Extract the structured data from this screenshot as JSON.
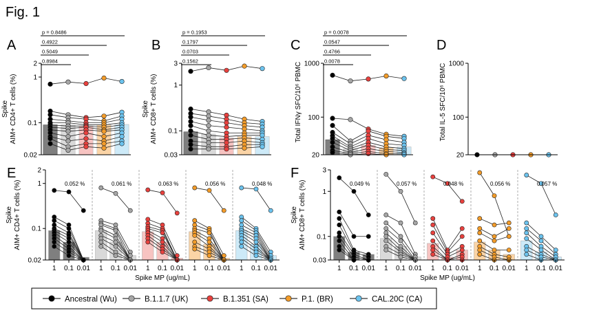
{
  "figure": {
    "title": "Fig. 1"
  },
  "colors": {
    "Ancestral (Wu)": "#000000",
    "B.1.1.7 (UK)": "#a6a6a6",
    "B.1.351 (SA)": "#e8413e",
    "P.1. (BR)": "#f39c2a",
    "CAL.20C (CA)": "#6cc3ee"
  },
  "bar_fill": {
    "Ancestral (Wu)": "#7f7f7f",
    "B.1.1.7 (UK)": "#d9d9d9",
    "B.1.351 (SA)": "#f7c3c1",
    "P.1. (BR)": "#fbd4a6",
    "CAL.20C (CA)": "#cdeaf8"
  },
  "legend": {
    "items": [
      {
        "label": "Ancestral (Wu)",
        "color": "#000000"
      },
      {
        "label": "B.1.1.7 (UK)",
        "color": "#a6a6a6"
      },
      {
        "label": "B.1.351 (SA)",
        "color": "#e8413e"
      },
      {
        "label": "P.1. (BR)",
        "color": "#f39c2a"
      },
      {
        "label": "CAL.20C (CA)",
        "color": "#6cc3ee"
      }
    ]
  },
  "chart_data": [
    {
      "panel": "A",
      "type": "bar",
      "scale": "log",
      "ylabel_line1": "Spike",
      "ylabel_line2": "AIM+ CD4+ T cells (%)",
      "ylim": [
        0.02,
        2
      ],
      "yticks": [
        {
          "v": 2,
          "label": "2"
        },
        {
          "v": 1,
          "label": "1"
        },
        {
          "v": 0.1,
          "label": "0.1"
        },
        {
          "v": 0.02,
          "label": "0.02"
        }
      ],
      "categories": [
        "Ancestral (Wu)",
        "B.1.1.7 (UK)",
        "B.1.351 (SA)",
        "P.1. (BR)",
        "CAL.20C (CA)"
      ],
      "bars": [
        0.09,
        0.09,
        0.085,
        0.09,
        0.092
      ],
      "subjects": [
        [
          0.7,
          0.78,
          0.72,
          0.95,
          0.8
        ],
        [
          0.18,
          0.15,
          0.13,
          0.14,
          0.17
        ],
        [
          0.15,
          0.13,
          0.12,
          0.11,
          0.14
        ],
        [
          0.12,
          0.11,
          0.1,
          0.1,
          0.12
        ],
        [
          0.1,
          0.1,
          0.09,
          0.09,
          0.1
        ],
        [
          0.09,
          0.085,
          0.085,
          0.08,
          0.09
        ],
        [
          0.08,
          0.075,
          0.08,
          0.07,
          0.08
        ],
        [
          0.07,
          0.065,
          0.07,
          0.065,
          0.07
        ],
        [
          0.06,
          0.05,
          0.06,
          0.05,
          0.06
        ],
        [
          0.05,
          0.04,
          0.045,
          0.04,
          0.05
        ],
        [
          0.045,
          0.03,
          0.035,
          0.035,
          0.04
        ],
        [
          0.035,
          0.025,
          0.03,
          0.028,
          0.035
        ]
      ],
      "pvalues": [
        {
          "label": "p = 0.8486",
          "to": 4
        },
        {
          "label": "0.4922",
          "to": 3
        },
        {
          "label": "0.5049",
          "to": 2
        },
        {
          "label": "0.8984",
          "to": 1
        }
      ]
    },
    {
      "panel": "B",
      "type": "bar",
      "scale": "log",
      "ylabel_line1": "Spike",
      "ylabel_line2": "AIM+ CD8+ T cells (%)",
      "ylim": [
        0.03,
        3
      ],
      "yticks": [
        {
          "v": 3,
          "label": "3"
        },
        {
          "v": 1,
          "label": "1"
        },
        {
          "v": 0.1,
          "label": "0.1"
        },
        {
          "v": 0.03,
          "label": "0.03"
        }
      ],
      "categories": [
        "Ancestral (Wu)",
        "B.1.1.7 (UK)",
        "B.1.351 (SA)",
        "P.1. (BR)",
        "CAL.20C (CA)"
      ],
      "bars": [
        0.095,
        0.085,
        0.07,
        0.075,
        0.075
      ],
      "subjects": [
        [
          2.0,
          2.4,
          2.1,
          2.6,
          2.3
        ],
        [
          0.3,
          0.26,
          0.22,
          0.18,
          0.16
        ],
        [
          0.24,
          0.21,
          0.18,
          0.15,
          0.14
        ],
        [
          0.2,
          0.17,
          0.15,
          0.13,
          0.12
        ],
        [
          0.16,
          0.13,
          0.12,
          0.11,
          0.1
        ],
        [
          0.13,
          0.1,
          0.09,
          0.09,
          0.09
        ],
        [
          0.1,
          0.08,
          0.075,
          0.08,
          0.08
        ],
        [
          0.08,
          0.065,
          0.065,
          0.07,
          0.065
        ],
        [
          0.06,
          0.055,
          0.055,
          0.06,
          0.055
        ],
        [
          0.05,
          0.045,
          0.045,
          0.05,
          0.05
        ],
        [
          0.04,
          0.04,
          0.04,
          0.042,
          0.045
        ]
      ],
      "pvalues": [
        {
          "label": "p = 0.1953",
          "to": 4
        },
        {
          "label": "0.1797",
          "to": 3
        },
        {
          "label": "0.0703",
          "to": 2
        },
        {
          "label": "0.1562",
          "to": 1
        }
      ]
    },
    {
      "panel": "C",
      "type": "bar",
      "scale": "log",
      "ylabel_line1": "Total IFNγ SFC/10⁶ PBMC",
      "ylabel_line2": "",
      "ylim": [
        20,
        1000
      ],
      "yticks": [
        {
          "v": 1000,
          "label": "1000"
        },
        {
          "v": 100,
          "label": "100"
        },
        {
          "v": 20,
          "label": "20"
        }
      ],
      "categories": [
        "Ancestral (Wu)",
        "B.1.1.7 (UK)",
        "B.1.351 (SA)",
        "P.1. (BR)",
        "CAL.20C (CA)"
      ],
      "bars": [
        38,
        26,
        30,
        27,
        28
      ],
      "subjects": [
        [
          600,
          470,
          510,
          580,
          520
        ],
        [
          95,
          90,
          60,
          48,
          44
        ],
        [
          70,
          36,
          55,
          44,
          40
        ],
        [
          52,
          32,
          46,
          38,
          34
        ],
        [
          45,
          28,
          40,
          32,
          30
        ],
        [
          40,
          26,
          34,
          28,
          26
        ],
        [
          34,
          24,
          30,
          25,
          24
        ],
        [
          28,
          22,
          26,
          23,
          22
        ],
        [
          24,
          21,
          23,
          21,
          21
        ],
        [
          22,
          20,
          21,
          20,
          20
        ]
      ],
      "pvalues": [
        {
          "label": "p = 0.0078",
          "to": 4
        },
        {
          "label": "0.0547",
          "to": 3
        },
        {
          "label": "0.4766",
          "to": 2
        },
        {
          "label": "0.0078",
          "to": 1
        }
      ]
    },
    {
      "panel": "D",
      "type": "bar",
      "scale": "log",
      "ylabel_line1": "Total IL-5 SFC/10⁶ PBMC",
      "ylabel_line2": "",
      "ylim": [
        20,
        1000
      ],
      "yticks": [
        {
          "v": 1000,
          "label": "1000"
        },
        {
          "v": 100,
          "label": "100"
        },
        {
          "v": 20,
          "label": "20"
        }
      ],
      "categories": [
        "Ancestral (Wu)",
        "B.1.1.7 (UK)",
        "B.1.351 (SA)",
        "P.1. (BR)",
        "CAL.20C (CA)"
      ],
      "bars": [
        20,
        20,
        20,
        20,
        20
      ],
      "subjects": [
        [
          20,
          20,
          20,
          20,
          20
        ]
      ],
      "pvalues": []
    },
    {
      "panel": "E",
      "type": "bar",
      "scale": "log",
      "ylabel_line1": "Spike",
      "ylabel_line2": "AIM+ CD4+ T cells (%)",
      "xlabel": "Spike MP (ug/mL)",
      "ylim": [
        0.02,
        2
      ],
      "yticks": [
        {
          "v": 2,
          "label": "2"
        },
        {
          "v": 1,
          "label": "1"
        },
        {
          "v": 0.1,
          "label": "0.1"
        },
        {
          "v": 0.02,
          "label": "0.02"
        }
      ],
      "doses": [
        "1",
        "0.1",
        "0.01"
      ],
      "groups": [
        {
          "variant": "Ancestral (Wu)",
          "annot": "0.052 %",
          "bars": [
            0.09,
            0.05,
            0.023
          ],
          "subjects": [
            [
              0.7,
              0.65,
              0.25
            ],
            [
              0.18,
              0.12,
              0.02
            ],
            [
              0.15,
              0.1,
              0.02
            ],
            [
              0.12,
              0.08,
              0.02
            ],
            [
              0.1,
              0.07,
              0.02
            ],
            [
              0.09,
              0.06,
              0.02
            ],
            [
              0.08,
              0.05,
              0.02
            ],
            [
              0.07,
              0.04,
              0.02
            ],
            [
              0.06,
              0.035,
              0.02
            ],
            [
              0.05,
              0.03,
              0.02
            ],
            [
              0.04,
              0.025,
              0.02
            ]
          ]
        },
        {
          "variant": "B.1.1.7 (UK)",
          "annot": "0.061 %",
          "bars": [
            0.09,
            0.05,
            0.025
          ],
          "subjects": [
            [
              0.8,
              0.6,
              0.25
            ],
            [
              0.15,
              0.12,
              0.03
            ],
            [
              0.13,
              0.1,
              0.025
            ],
            [
              0.12,
              0.09,
              0.02
            ],
            [
              0.1,
              0.07,
              0.02
            ],
            [
              0.09,
              0.06,
              0.02
            ],
            [
              0.07,
              0.05,
              0.02
            ],
            [
              0.06,
              0.04,
              0.02
            ],
            [
              0.05,
              0.03,
              0.02
            ],
            [
              0.04,
              0.025,
              0.02
            ]
          ]
        },
        {
          "variant": "B.1.351 (SA)",
          "annot": "0.063 %",
          "bars": [
            0.085,
            0.05,
            0.022
          ],
          "subjects": [
            [
              0.72,
              0.62,
              0.22
            ],
            [
              0.16,
              0.12,
              0.025
            ],
            [
              0.13,
              0.1,
              0.02
            ],
            [
              0.11,
              0.09,
              0.02
            ],
            [
              0.1,
              0.08,
              0.02
            ],
            [
              0.09,
              0.06,
              0.02
            ],
            [
              0.08,
              0.05,
              0.02
            ],
            [
              0.07,
              0.04,
              0.02
            ],
            [
              0.06,
              0.035,
              0.02
            ],
            [
              0.05,
              0.03,
              0.02
            ]
          ]
        },
        {
          "variant": "P.1. (BR)",
          "annot": "0.056 %",
          "bars": [
            0.085,
            0.045,
            0.022
          ],
          "subjects": [
            [
              0.8,
              0.7,
              0.25
            ],
            [
              0.15,
              0.1,
              0.025
            ],
            [
              0.12,
              0.09,
              0.02
            ],
            [
              0.1,
              0.08,
              0.02
            ],
            [
              0.09,
              0.06,
              0.02
            ],
            [
              0.08,
              0.05,
              0.02
            ],
            [
              0.07,
              0.04,
              0.02
            ],
            [
              0.05,
              0.035,
              0.02
            ],
            [
              0.04,
              0.03,
              0.02
            ],
            [
              0.035,
              0.025,
              0.02
            ]
          ]
        },
        {
          "variant": "CAL.20C (CA)",
          "annot": "0.048 %",
          "bars": [
            0.09,
            0.045,
            0.025
          ],
          "subjects": [
            [
              0.8,
              0.75,
              0.25
            ],
            [
              0.18,
              0.1,
              0.03
            ],
            [
              0.15,
              0.09,
              0.025
            ],
            [
              0.12,
              0.08,
              0.022
            ],
            [
              0.1,
              0.07,
              0.02
            ],
            [
              0.09,
              0.06,
              0.02
            ],
            [
              0.08,
              0.05,
              0.02
            ],
            [
              0.07,
              0.04,
              0.02
            ],
            [
              0.06,
              0.035,
              0.02
            ],
            [
              0.05,
              0.03,
              0.02
            ],
            [
              0.04,
              0.025,
              0.02
            ]
          ]
        }
      ]
    },
    {
      "panel": "F",
      "type": "bar",
      "scale": "log",
      "ylabel_line1": "Spike",
      "ylabel_line2": "AIM+ CD8+ T cells (%)",
      "xlabel": "Spike MP (ug/mL)",
      "ylim": [
        0.03,
        3
      ],
      "yticks": [
        {
          "v": 3,
          "label": "3"
        },
        {
          "v": 1,
          "label": "1"
        },
        {
          "v": 0.1,
          "label": "0.1"
        },
        {
          "v": 0.03,
          "label": "0.03"
        }
      ],
      "doses": [
        "1",
        "0.1",
        "0.01"
      ],
      "groups": [
        {
          "variant": "Ancestral (Wu)",
          "annot": "0.049 %",
          "bars": [
            0.1,
            0.045,
            0.04
          ],
          "subjects": [
            [
              2.0,
              1.0,
              0.3
            ],
            [
              0.35,
              0.1,
              0.1
            ],
            [
              0.25,
              0.05,
              0.04
            ],
            [
              0.18,
              0.045,
              0.035
            ],
            [
              0.12,
              0.04,
              0.03
            ],
            [
              0.1,
              0.035,
              0.03
            ],
            [
              0.08,
              0.03,
              0.03
            ],
            [
              0.06,
              0.03,
              0.03
            ],
            [
              0.05,
              0.03,
              0.03
            ]
          ]
        },
        {
          "variant": "B.1.1.7 (UK)",
          "annot": "0.057 %",
          "bars": [
            0.09,
            0.06,
            0.035
          ],
          "subjects": [
            [
              2.4,
              1.0,
              0.2
            ],
            [
              0.3,
              0.2,
              0.04
            ],
            [
              0.2,
              0.1,
              0.035
            ],
            [
              0.15,
              0.08,
              0.03
            ],
            [
              0.12,
              0.06,
              0.03
            ],
            [
              0.1,
              0.05,
              0.03
            ],
            [
              0.08,
              0.045,
              0.03
            ],
            [
              0.06,
              0.04,
              0.03
            ],
            [
              0.05,
              0.035,
              0.03
            ]
          ]
        },
        {
          "variant": "B.1.351 (SA)",
          "annot": "0.048 %",
          "bars": [
            0.07,
            0.035,
            0.05
          ],
          "subjects": [
            [
              2.1,
              1.5,
              0.6
            ],
            [
              0.25,
              0.05,
              0.15
            ],
            [
              0.18,
              0.045,
              0.1
            ],
            [
              0.12,
              0.04,
              0.06
            ],
            [
              0.08,
              0.035,
              0.05
            ],
            [
              0.06,
              0.03,
              0.04
            ],
            [
              0.05,
              0.03,
              0.035
            ],
            [
              0.04,
              0.03,
              0.03
            ]
          ]
        },
        {
          "variant": "P.1. (BR)",
          "annot": "0.056 %",
          "bars": [
            0.075,
            0.05,
            0.04
          ],
          "subjects": [
            [
              2.6,
              0.8,
              0.1
            ],
            [
              0.25,
              0.18,
              0.2
            ],
            [
              0.15,
              0.1,
              0.15
            ],
            [
              0.12,
              0.08,
              0.1
            ],
            [
              0.08,
              0.05,
              0.05
            ],
            [
              0.06,
              0.04,
              0.035
            ],
            [
              0.05,
              0.035,
              0.03
            ],
            [
              0.04,
              0.03,
              0.03
            ]
          ]
        },
        {
          "variant": "CAL.20C (CA)",
          "annot": "0.057 %",
          "bars": [
            0.08,
            0.045,
            0.035
          ],
          "subjects": [
            [
              2.3,
              1.5,
              0.3
            ],
            [
              0.2,
              0.1,
              0.05
            ],
            [
              0.15,
              0.08,
              0.04
            ],
            [
              0.12,
              0.06,
              0.035
            ],
            [
              0.09,
              0.05,
              0.03
            ],
            [
              0.06,
              0.04,
              0.03
            ],
            [
              0.05,
              0.035,
              0.03
            ],
            [
              0.04,
              0.03,
              0.03
            ]
          ]
        }
      ]
    }
  ]
}
